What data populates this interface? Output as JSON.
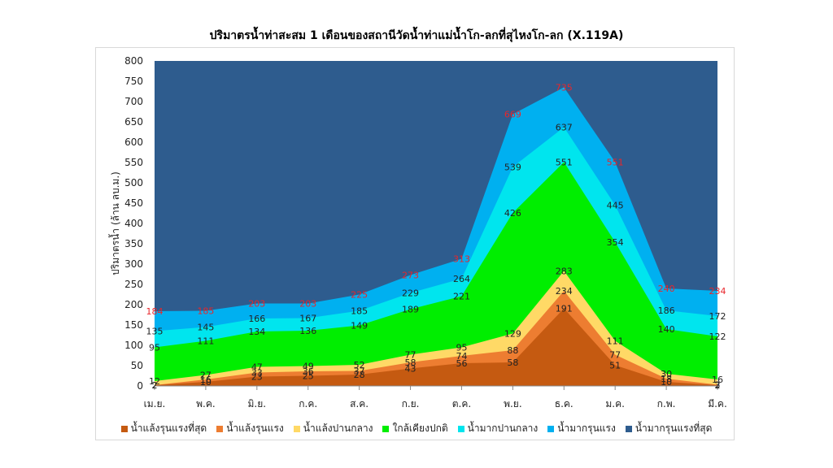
{
  "chart_data": {
    "type": "area",
    "title": "ปริมาตรน้ำท่าสะสม 1 เดือนของสถานีวัดน้ำท่าแม่น้ำโก-ลกที่สุไหงโก-ลก (X.119A)",
    "ylabel": "ปริมาตรน้ำ (ล้าน ลบ.ม.)",
    "xlabel": "",
    "ylim": [
      0,
      800
    ],
    "yticks": [
      0,
      50,
      100,
      150,
      200,
      250,
      300,
      350,
      400,
      450,
      500,
      550,
      600,
      650,
      700,
      750,
      800
    ],
    "categories": [
      "เม.ย.",
      "พ.ค.",
      "มิ.ย.",
      "ก.ค.",
      "ส.ค.",
      "ก.ย.",
      "ต.ค.",
      "พ.ย.",
      "ธ.ค.",
      "ม.ค.",
      "ก.พ.",
      "มี.ค."
    ],
    "legend_position": "bottom",
    "grid": false,
    "series": [
      {
        "name": "น้ำแล้งรุนแรงที่สุด",
        "color": "#c55a11",
        "values": [
          2,
          10,
          23,
          25,
          28,
          43,
          56,
          58,
          191,
          51,
          10,
          2
        ]
      },
      {
        "name": "น้ำแล้งรุนแรง",
        "color": "#ed7d31",
        "values": [
          2,
          16,
          33,
          36,
          37,
          58,
          74,
          88,
          234,
          77,
          18,
          3
        ]
      },
      {
        "name": "น้ำแล้งปานกลาง",
        "color": "#ffd966",
        "values": [
          12,
          27,
          47,
          49,
          52,
          77,
          95,
          129,
          283,
          111,
          30,
          16
        ]
      },
      {
        "name": "ใกล้เคียงปกติ",
        "color": "#00ee00",
        "values": [
          95,
          111,
          134,
          136,
          149,
          189,
          221,
          426,
          551,
          354,
          140,
          122
        ]
      },
      {
        "name": "น้ำมากปานกลาง",
        "color": "#00e5ee",
        "values": [
          135,
          145,
          166,
          167,
          185,
          229,
          264,
          539,
          637,
          445,
          186,
          172
        ]
      },
      {
        "name": "น้ำมากรุนแรง",
        "color": "#00b0f0",
        "values": [
          184,
          185,
          203,
          203,
          225,
          273,
          313,
          669,
          735,
          551,
          240,
          234
        ]
      },
      {
        "name": "น้ำมากรุนแรงที่สุด",
        "color": "#2e5c8e",
        "values": [
          800,
          800,
          800,
          800,
          800,
          800,
          800,
          800,
          800,
          800,
          800,
          800
        ]
      }
    ],
    "data_labels": {
      "label_series": [
        0,
        1,
        2,
        3,
        4,
        5
      ],
      "highlight_series": 5,
      "highlight_color": "#e8262b"
    }
  }
}
